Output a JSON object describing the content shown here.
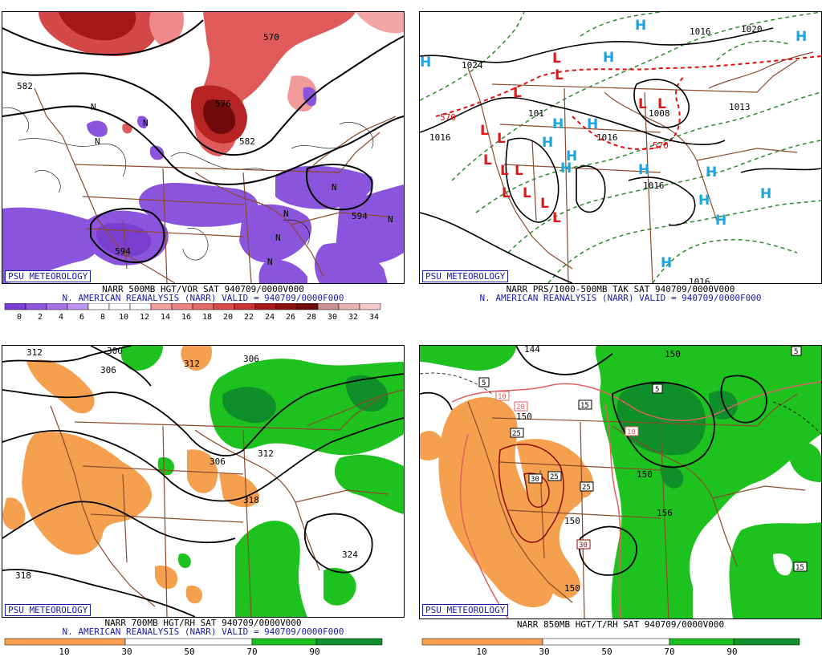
{
  "psu_label": "PSU METEOROLOGY",
  "panels": {
    "tl": {
      "title_line": "NARR 500MB HGT/VOR SAT 940709/0000V000",
      "subtitle_line": "N. AMERICAN REANALYSIS (NARR) VALID = 940709/0000F000",
      "labels": {
        "h582a": "582",
        "h570": "570",
        "h576": "576",
        "h582b": "582",
        "h594a": "594",
        "h594b": "594",
        "n1": "N",
        "n2": "N",
        "n3": "N",
        "n4": "N",
        "n5": "N",
        "n6": "N",
        "n7": "N",
        "n8": "N"
      },
      "colorbar": {
        "ticks": [
          "0",
          "2",
          "4",
          "6",
          "8",
          "10",
          "12",
          "14",
          "16",
          "18",
          "20",
          "22",
          "24",
          "26",
          "28",
          "30",
          "32",
          "34"
        ],
        "colors": [
          "#7b3fd6",
          "#8f57de",
          "#a673e6",
          "#bd95ee",
          "#ffffff",
          "#ffffff",
          "#ffffff",
          "#f0a0a0",
          "#ea8484",
          "#e26a6a",
          "#d94a4a",
          "#c83232",
          "#a81a1a",
          "#8a0f0f",
          "#6e0a0a",
          "#c89090",
          "#e4b4b4",
          "#f4c8c8"
        ]
      }
    },
    "tr": {
      "title_line": "NARR PRS/1000-500MB TAK SAT 940709/0000V000",
      "subtitle_line": "N. AMERICAN REANALYSIS (NARR) VALID = 940709/0000F000",
      "labels": {
        "p1024": "1024",
        "p1016a": "1016",
        "p1016b": "1016",
        "p1016c": "1016",
        "p1016d": "1016",
        "p1016e": "1016",
        "p1008": "1008",
        "p1013": "1013",
        "p1020": "1020",
        "p1012": "101",
        "t570a": "570",
        "t570b": "570",
        "h": "H",
        "l": "L"
      }
    },
    "bl": {
      "title_line": "NARR 700MB HGT/RH SAT 940709/0000V000",
      "subtitle_line": "N. AMERICAN REANALYSIS (NARR) VALID = 940709/0000F000",
      "labels": {
        "h312a": "312",
        "h300": "300",
        "h306a": "306",
        "h312b": "312",
        "h306b": "306",
        "h306c": "306",
        "h312c": "312",
        "h318a": "318",
        "h324": "324",
        "h318b": "318"
      },
      "colorbar": {
        "ticks": [
          "10",
          "30",
          "50",
          "70",
          "90"
        ]
      }
    },
    "br": {
      "title_line": "NARR 850MB HGT/T/RH SAT 940709/0000V000",
      "subtitle_line": "",
      "labels": {
        "h144": "144",
        "h150a": "150",
        "h150b": "150",
        "h150c": "150",
        "h150d": "150",
        "h150e": "150",
        "h156": "156",
        "t5a": "5",
        "t5b": "5",
        "t5c": "5",
        "t10a": "10",
        "t10b": "10",
        "t15a": "15",
        "t15b": "15",
        "t20": "20",
        "t25a": "25",
        "t25b": "25",
        "t25c": "25",
        "t30a": "30",
        "t30b": "30"
      },
      "colorbar": {
        "ticks": [
          "10",
          "30",
          "50",
          "70",
          "90"
        ]
      }
    }
  },
  "colors": {
    "psu_blue": "#1a1aa8",
    "orange": "#f5a04f",
    "green_light": "#1ec21e",
    "green_dark": "#0f8f2a",
    "purple": "#8a55dc",
    "red": "#e04848",
    "brown": "#8b4a2b",
    "high_blue": "#1aa6e0",
    "low_red": "#dd1a1a"
  }
}
